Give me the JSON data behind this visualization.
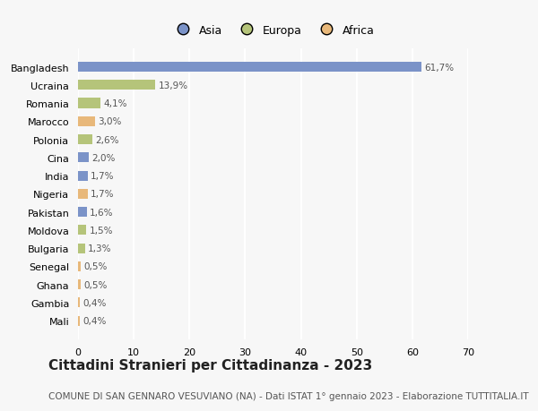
{
  "categories": [
    "Bangladesh",
    "Ucraina",
    "Romania",
    "Marocco",
    "Polonia",
    "Cina",
    "India",
    "Nigeria",
    "Pakistan",
    "Moldova",
    "Bulgaria",
    "Senegal",
    "Ghana",
    "Gambia",
    "Mali"
  ],
  "values": [
    61.7,
    13.9,
    4.1,
    3.0,
    2.6,
    2.0,
    1.7,
    1.7,
    1.6,
    1.5,
    1.3,
    0.5,
    0.5,
    0.4,
    0.4
  ],
  "labels": [
    "61,7%",
    "13,9%",
    "4,1%",
    "3,0%",
    "2,6%",
    "2,0%",
    "1,7%",
    "1,7%",
    "1,6%",
    "1,5%",
    "1,3%",
    "0,5%",
    "0,5%",
    "0,4%",
    "0,4%"
  ],
  "continents": [
    "Asia",
    "Europa",
    "Europa",
    "Africa",
    "Europa",
    "Asia",
    "Asia",
    "Africa",
    "Asia",
    "Europa",
    "Europa",
    "Africa",
    "Africa",
    "Africa",
    "Africa"
  ],
  "colors": {
    "Asia": "#7b93c8",
    "Europa": "#b5c47a",
    "Africa": "#e8b87a"
  },
  "legend_labels": [
    "Asia",
    "Europa",
    "Africa"
  ],
  "xlim": [
    0,
    70
  ],
  "xticks": [
    0,
    10,
    20,
    30,
    40,
    50,
    60,
    70
  ],
  "title": "Cittadini Stranieri per Cittadinanza - 2023",
  "subtitle": "COMUNE DI SAN GENNARO VESUVIANO (NA) - Dati ISTAT 1° gennaio 2023 - Elaborazione TUTTITALIA.IT",
  "background_color": "#f7f7f7",
  "bar_height": 0.55,
  "label_fontsize": 7.5,
  "ylabel_fontsize": 8.0,
  "xlabel_fontsize": 8.0,
  "title_fontsize": 11,
  "subtitle_fontsize": 7.5,
  "legend_fontsize": 9
}
